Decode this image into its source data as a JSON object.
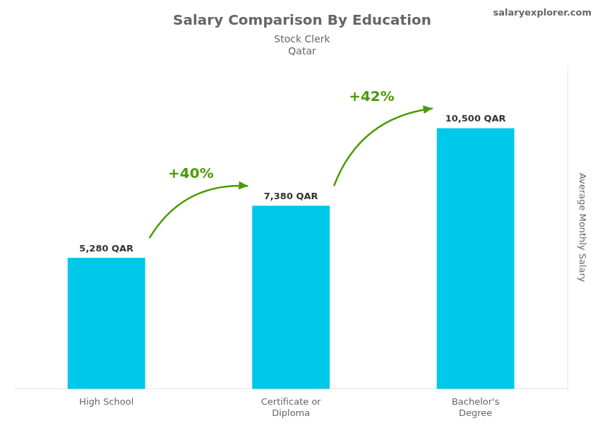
{
  "chart_data": {
    "type": "bar",
    "title": "Salary Comparison By Education",
    "subtitle": [
      "Stock Clerk",
      "Qatar"
    ],
    "caption": "salaryexplorer.com",
    "ylabel": "Average Monthly Salary",
    "categories": [
      "High School",
      "Certificate or\nDiploma",
      "Bachelor's\nDegree"
    ],
    "values": [
      5280,
      7380,
      10500
    ],
    "value_labels": [
      "5,280 QAR",
      "7,380 QAR",
      "10,500 QAR"
    ],
    "data_labels": true,
    "annotations": [
      "+40%",
      "+42%"
    ],
    "color": "#00c8e8",
    "ylim": [
      0,
      13000
    ],
    "tick_labels": "x",
    "grid": false
  }
}
